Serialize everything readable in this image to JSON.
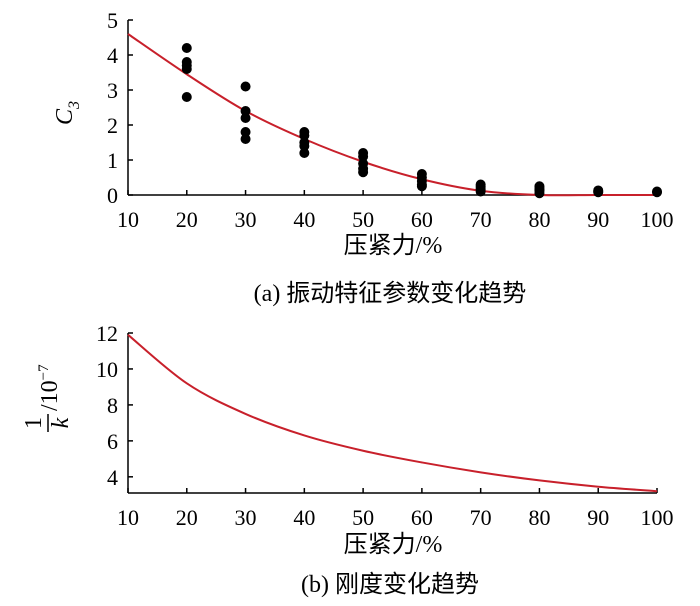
{
  "chart_data": [
    {
      "type": "scatter",
      "xlabel": "压紧力/%",
      "ylabel": "C",
      "ylabel_sub": "3",
      "caption": "(a)  振动特征参数变化趋势",
      "xlim": [
        10,
        100
      ],
      "ylim": [
        0,
        5
      ],
      "xticks": [
        "10",
        "20",
        "30",
        "40",
        "50",
        "60",
        "70",
        "80",
        "90",
        "100"
      ],
      "yticks": [
        "0",
        "1",
        "2",
        "3",
        "4",
        "5"
      ],
      "line_color": "#c8202b",
      "point_color": "#000000",
      "series": [
        {
          "points": [
            [
              20,
              4.2
            ],
            [
              20,
              3.8
            ],
            [
              20,
              3.7
            ],
            [
              20,
              3.6
            ],
            [
              20,
              2.8
            ],
            [
              30,
              3.1
            ],
            [
              30,
              2.4
            ],
            [
              30,
              2.2
            ],
            [
              30,
              1.8
            ],
            [
              30,
              1.6
            ],
            [
              40,
              1.8
            ],
            [
              40,
              1.7
            ],
            [
              40,
              1.5
            ],
            [
              40,
              1.4
            ],
            [
              40,
              1.2
            ],
            [
              50,
              1.2
            ],
            [
              50,
              1.1
            ],
            [
              50,
              0.9
            ],
            [
              50,
              0.75
            ],
            [
              50,
              0.65
            ],
            [
              60,
              0.6
            ],
            [
              60,
              0.5
            ],
            [
              60,
              0.4
            ],
            [
              60,
              0.3
            ],
            [
              60,
              0.25
            ],
            [
              70,
              0.3
            ],
            [
              70,
              0.25
            ],
            [
              70,
              0.2
            ],
            [
              70,
              0.15
            ],
            [
              70,
              0.1
            ],
            [
              80,
              0.25
            ],
            [
              80,
              0.2
            ],
            [
              80,
              0.15
            ],
            [
              80,
              0.12
            ],
            [
              80,
              0.05
            ],
            [
              90,
              0.13
            ],
            [
              90,
              0.1
            ],
            [
              90,
              0.08
            ],
            [
              100,
              0.1
            ],
            [
              100,
              0.08
            ]
          ]
        },
        {
          "x": [
            10,
            20,
            30,
            40,
            50,
            60,
            70,
            80,
            90,
            100
          ],
          "y": [
            4.6,
            3.45,
            2.4,
            1.6,
            0.95,
            0.45,
            0.12,
            0.0,
            0.0,
            0.0
          ]
        }
      ]
    },
    {
      "type": "line",
      "xlabel": "压紧力/%",
      "ylabel_num": "1",
      "ylabel_den": "k",
      "ylabel_unit": "/10",
      "ylabel_exp": "−7",
      "caption": "(b)  刚度变化趋势",
      "xlim": [
        10,
        100
      ],
      "ylim": [
        3.1,
        12
      ],
      "xticks": [
        "10",
        "20",
        "30",
        "40",
        "50",
        "60",
        "70",
        "80",
        "90",
        "100"
      ],
      "yticks": [
        "4",
        "6",
        "8",
        "10",
        "12"
      ],
      "line_color": "#c8202b",
      "series": [
        {
          "x": [
            10,
            20,
            30,
            40,
            50,
            60,
            70,
            80,
            90,
            100
          ],
          "y": [
            11.9,
            9.2,
            7.5,
            6.3,
            5.45,
            4.8,
            4.25,
            3.8,
            3.45,
            3.2
          ]
        }
      ]
    }
  ]
}
